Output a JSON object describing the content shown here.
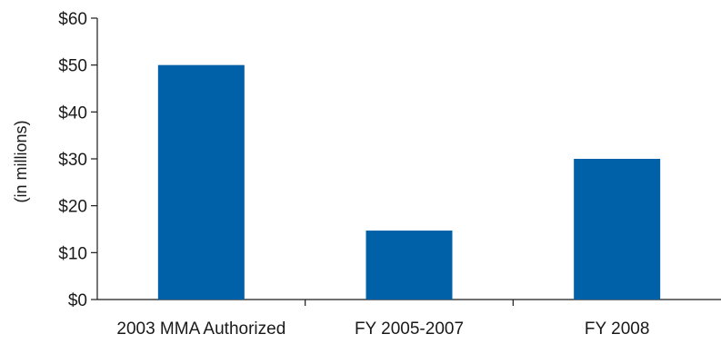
{
  "chart_data": {
    "type": "bar",
    "title": "",
    "xlabel": "",
    "ylabel": "(in millions)",
    "categories": [
      "2003 MMA Authorized",
      "FY 2005-2007",
      "FY 2008"
    ],
    "values": [
      50,
      14.7,
      30
    ],
    "ylim": [
      0,
      60
    ],
    "yticks": [
      0,
      10,
      20,
      30,
      40,
      50,
      60
    ],
    "ytick_labels": [
      "$0",
      "$10",
      "$20",
      "$30",
      "$40",
      "$50",
      "$60"
    ],
    "grid": false,
    "legend": "none",
    "bar_color": "#0061a8",
    "axis_color": "#1a1a1a"
  }
}
